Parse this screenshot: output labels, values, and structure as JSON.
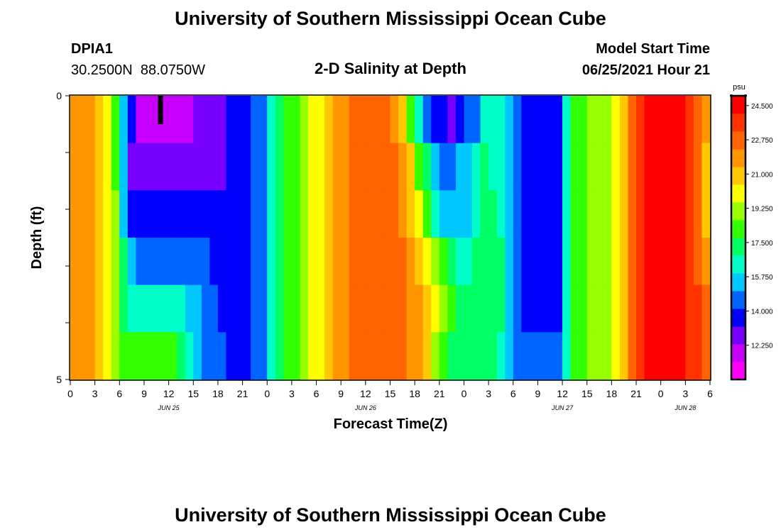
{
  "page": {
    "title_top": "University of Southern Mississippi Ocean Cube",
    "title_bottom": "University of Southern Mississippi Ocean Cube",
    "station_id": "DPIA1",
    "station_coords": "30.2500N  88.0750W",
    "chart_title": "2-D Salinity at Depth",
    "model_start_label": "Model Start Time",
    "model_start_value": "06/25/2021 Hour 21"
  },
  "chart_data": {
    "type": "heatmap",
    "title": "2-D Salinity at Depth",
    "xlabel": "Forecast Time(Z)",
    "ylabel": "Depth (ft)",
    "x_start_hour": 0,
    "x_end_hour": 78,
    "x_step_hours": 1,
    "x_tick_step_hours": 3,
    "x_tick_labels": [
      "0",
      "3",
      "6",
      "9",
      "12",
      "15",
      "18",
      "21",
      "0",
      "3",
      "6",
      "9",
      "12",
      "15",
      "18",
      "21",
      "0",
      "3",
      "6",
      "9",
      "12",
      "15",
      "18",
      "21",
      "0",
      "3",
      "6"
    ],
    "date_labels": [
      {
        "label": "JUN 25",
        "hour": 12
      },
      {
        "label": "JUN 26",
        "hour": 36
      },
      {
        "label": "JUN 27",
        "hour": 60
      },
      {
        "label": "JUN 28",
        "hour": 75
      }
    ],
    "y_range": [
      0,
      5
    ],
    "y_tick_labels": [
      "0",
      "",
      "",
      "",
      "",
      "5"
    ],
    "marker": {
      "hour": 11,
      "depth_top": 0,
      "depth_bottom": 0.5
    },
    "colorbar": {
      "unit": "psu",
      "min": 10.5,
      "max": 25.0,
      "tick_values": [
        24.5,
        22.75,
        21.0,
        19.25,
        17.5,
        15.75,
        14.0,
        12.25
      ],
      "tick_labels": [
        "24.500",
        "22.750",
        "21.000",
        "19.250",
        "17.500",
        "15.750",
        "14.000",
        "12.250"
      ],
      "colors": [
        "#ff00ff",
        "#c800ff",
        "#7800ff",
        "#0000ff",
        "#0064ff",
        "#00c8ff",
        "#00ffc8",
        "#00ff64",
        "#32ff00",
        "#96ff00",
        "#ffff00",
        "#ffc800",
        "#ff9600",
        "#ff6400",
        "#ff3200",
        "#ff0000"
      ]
    },
    "profiles": [
      {
        "hour": 0,
        "values": [
          22.0,
          22.0,
          22.0,
          22.0,
          22.0,
          22.0
        ]
      },
      {
        "hour": 2,
        "values": [
          21.8,
          21.8,
          21.8,
          21.8,
          21.8,
          21.8
        ]
      },
      {
        "hour": 3,
        "values": [
          21.2,
          21.3,
          21.3,
          21.3,
          21.3,
          21.2
        ]
      },
      {
        "hour": 4,
        "values": [
          20.5,
          20.7,
          20.7,
          20.7,
          20.5,
          20.3
        ]
      },
      {
        "hour": 5,
        "values": [
          19.0,
          19.5,
          19.8,
          19.8,
          19.5,
          19.0
        ]
      },
      {
        "hour": 6,
        "values": [
          17.0,
          17.5,
          18.0,
          18.5,
          18.5,
          18.8
        ]
      },
      {
        "hour": 7,
        "values": [
          14.5,
          13.5,
          13.8,
          16.0,
          16.8,
          18.5
        ]
      },
      {
        "hour": 8,
        "values": [
          12.5,
          12.9,
          13.5,
          15.0,
          16.5,
          18.2
        ]
      },
      {
        "hour": 10,
        "values": [
          11.5,
          12.7,
          13.4,
          14.9,
          16.5,
          18.0
        ]
      },
      {
        "hour": 13,
        "values": [
          11.7,
          12.7,
          13.4,
          14.9,
          16.3,
          17.8
        ]
      },
      {
        "hour": 15,
        "values": [
          12.3,
          12.8,
          13.3,
          14.8,
          15.5,
          16.0
        ]
      },
      {
        "hour": 17,
        "values": [
          13.0,
          13.0,
          13.2,
          14.0,
          14.3,
          14.5
        ]
      },
      {
        "hour": 21,
        "values": [
          13.5,
          13.5,
          13.5,
          13.5,
          13.5,
          13.5
        ]
      },
      {
        "hour": 23,
        "values": [
          14.5,
          14.5,
          14.5,
          14.5,
          14.5,
          14.5
        ]
      },
      {
        "hour": 24,
        "values": [
          15.5,
          15.5,
          15.5,
          15.5,
          15.5,
          15.5
        ]
      },
      {
        "hour": 25,
        "values": [
          16.7,
          16.7,
          16.7,
          16.7,
          16.7,
          16.7
        ]
      },
      {
        "hour": 26,
        "values": [
          17.8,
          17.8,
          17.8,
          17.8,
          17.8,
          17.8
        ]
      },
      {
        "hour": 28,
        "values": [
          18.9,
          18.9,
          18.9,
          18.9,
          18.9,
          18.9
        ]
      },
      {
        "hour": 30,
        "values": [
          19.8,
          19.8,
          19.8,
          19.8,
          19.8,
          19.8
        ]
      },
      {
        "hour": 32,
        "values": [
          21.0,
          21.0,
          21.0,
          21.0,
          21.0,
          21.0
        ]
      },
      {
        "hour": 33,
        "values": [
          21.8,
          21.8,
          21.8,
          21.8,
          21.8,
          21.8
        ]
      },
      {
        "hour": 35,
        "values": [
          22.6,
          22.6,
          22.6,
          22.6,
          22.6,
          22.6
        ]
      },
      {
        "hour": 37,
        "values": [
          23.0,
          23.0,
          23.0,
          23.0,
          22.9,
          22.8
        ]
      },
      {
        "hour": 39,
        "values": [
          22.7,
          22.8,
          22.8,
          22.8,
          22.6,
          22.6
        ]
      },
      {
        "hour": 40,
        "values": [
          21.5,
          22.4,
          22.6,
          22.6,
          22.4,
          22.4
        ]
      },
      {
        "hour": 41,
        "values": [
          19.5,
          21.5,
          21.5,
          22.0,
          22.2,
          22.3
        ]
      },
      {
        "hour": 42,
        "values": [
          17.5,
          19.5,
          20.8,
          21.2,
          21.8,
          21.8
        ]
      },
      {
        "hour": 43,
        "values": [
          15.0,
          17.8,
          19.5,
          20.5,
          21.2,
          21.0
        ]
      },
      {
        "hour": 44,
        "values": [
          14.0,
          16.0,
          17.5,
          19.5,
          20.3,
          20.0
        ]
      },
      {
        "hour": 45,
        "values": [
          13.5,
          15.0,
          15.5,
          18.0,
          19.5,
          19.0
        ]
      },
      {
        "hour": 46,
        "values": [
          13.0,
          15.0,
          15.5,
          17.5,
          18.5,
          17.8
        ]
      },
      {
        "hour": 47,
        "values": [
          13.3,
          15.0,
          15.3,
          16.5,
          17.5,
          17.2
        ]
      },
      {
        "hour": 48,
        "values": [
          13.8,
          15.5,
          15.3,
          16.2,
          17.2,
          17.0
        ]
      },
      {
        "hour": 49,
        "values": [
          14.5,
          16.3,
          16.5,
          16.5,
          17.2,
          17.2
        ]
      },
      {
        "hour": 50,
        "values": [
          15.5,
          16.8,
          17.0,
          17.5,
          17.5,
          17.4
        ]
      },
      {
        "hour": 51,
        "values": [
          16.5,
          17.0,
          17.2,
          17.8,
          17.6,
          17.3
        ]
      },
      {
        "hour": 52,
        "values": [
          16.5,
          16.5,
          16.8,
          17.5,
          17.2,
          16.8
        ]
      },
      {
        "hour": 53,
        "values": [
          16.0,
          15.8,
          16.0,
          16.5,
          16.5,
          15.8
        ]
      },
      {
        "hour": 54,
        "values": [
          15.0,
          14.8,
          14.8,
          15.0,
          15.0,
          15.0
        ]
      },
      {
        "hour": 55,
        "values": [
          13.5,
          13.5,
          13.5,
          13.5,
          13.5,
          14.5
        ]
      },
      {
        "hour": 59,
        "values": [
          13.2,
          13.2,
          13.2,
          13.2,
          13.2,
          14.2
        ]
      },
      {
        "hour": 60,
        "values": [
          15.0,
          15.0,
          15.0,
          15.0,
          15.0,
          15.5
        ]
      },
      {
        "hour": 61,
        "values": [
          17.5,
          17.5,
          17.5,
          17.5,
          17.5,
          17.5
        ]
      },
      {
        "hour": 62,
        "values": [
          18.3,
          18.3,
          18.3,
          18.3,
          18.3,
          18.3
        ]
      },
      {
        "hour": 64,
        "values": [
          19.0,
          19.0,
          19.0,
          19.0,
          19.0,
          19.0
        ]
      },
      {
        "hour": 66,
        "values": [
          19.5,
          19.5,
          19.5,
          19.5,
          19.5,
          19.5
        ]
      },
      {
        "hour": 67,
        "values": [
          20.5,
          20.5,
          20.5,
          20.5,
          20.5,
          20.5
        ]
      },
      {
        "hour": 68,
        "values": [
          22.0,
          22.0,
          22.0,
          22.0,
          22.0,
          22.0
        ]
      },
      {
        "hour": 69,
        "values": [
          23.3,
          23.3,
          23.3,
          23.3,
          23.3,
          23.3
        ]
      },
      {
        "hour": 70,
        "values": [
          24.4,
          24.4,
          24.4,
          24.4,
          24.4,
          24.4
        ]
      },
      {
        "hour": 74,
        "values": [
          24.6,
          24.6,
          24.6,
          24.6,
          24.6,
          24.6
        ]
      },
      {
        "hour": 75,
        "values": [
          24.2,
          24.2,
          24.2,
          24.2,
          24.2,
          24.2
        ]
      },
      {
        "hour": 76,
        "values": [
          23.5,
          23.5,
          23.5,
          23.5,
          23.5,
          23.5
        ]
      },
      {
        "hour": 77,
        "values": [
          22.3,
          21.8,
          21.8,
          22.5,
          23.0,
          23.0
        ]
      },
      {
        "hour": 78,
        "values": [
          20.5,
          20.0,
          20.0,
          21.5,
          22.5,
          22.5
        ]
      }
    ]
  }
}
